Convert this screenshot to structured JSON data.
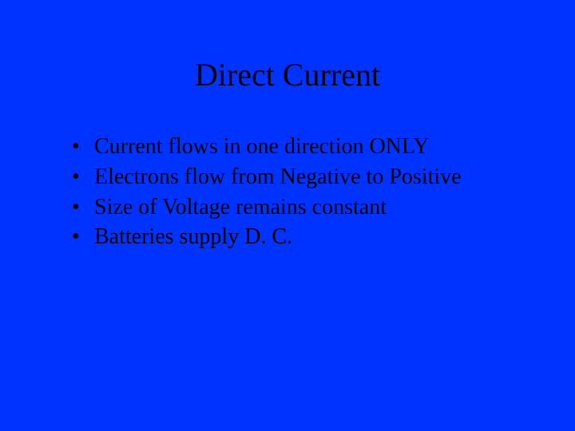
{
  "slide": {
    "background_color": "#0033ff",
    "text_color": "#000000",
    "font_family": "Times New Roman, Times, serif",
    "title": "Direct Current",
    "title_fontsize": 40,
    "bullet_fontsize": 28,
    "bullet_char": "•",
    "bullets": [
      "Current flows in one direction ONLY",
      "Electrons flow from Negative to Positive",
      "Size of Voltage remains constant",
      "Batteries supply D. C."
    ]
  }
}
